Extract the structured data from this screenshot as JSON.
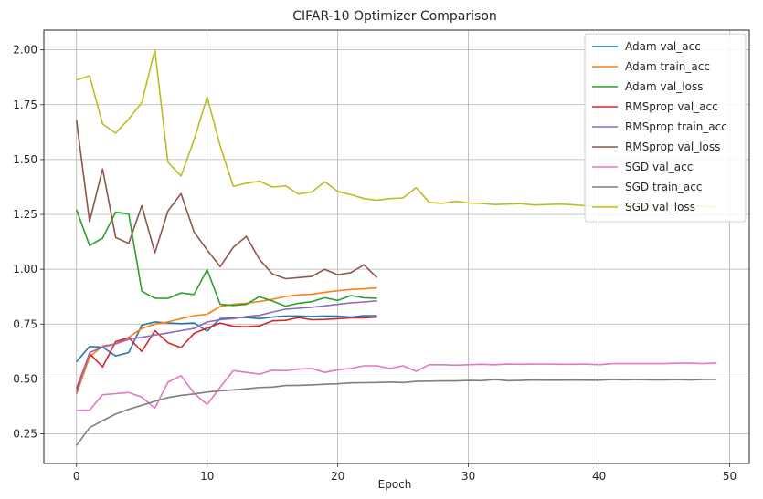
{
  "chart_data": {
    "type": "line",
    "title": "CIFAR-10 Optimizer Comparison",
    "xlabel": "Epoch",
    "ylabel": "",
    "xlim": [
      -2.5,
      51.5
    ],
    "ylim": [
      0.115,
      2.09
    ],
    "xticks": [
      0,
      10,
      20,
      30,
      40,
      50
    ],
    "yticks": [
      0.25,
      0.5,
      0.75,
      1.0,
      1.25,
      1.5,
      1.75,
      2.0
    ],
    "grid": true,
    "legend_position": "top-right",
    "series": [
      {
        "name": "Adam val_acc",
        "color": "#1f77b4",
        "values": [
          0.578,
          0.648,
          0.645,
          0.605,
          0.62,
          0.745,
          0.76,
          0.755,
          0.752,
          0.755,
          0.718,
          0.775,
          0.778,
          0.78,
          0.775,
          0.782,
          0.787,
          0.787,
          0.785,
          0.787,
          0.786,
          0.782,
          0.788,
          0.788
        ]
      },
      {
        "name": "Adam train_acc",
        "color": "#ff7f0e",
        "values": [
          0.43,
          0.6,
          0.65,
          0.66,
          0.69,
          0.73,
          0.75,
          0.76,
          0.775,
          0.788,
          0.795,
          0.83,
          0.84,
          0.845,
          0.853,
          0.863,
          0.876,
          0.883,
          0.886,
          0.895,
          0.902,
          0.908,
          0.911,
          0.915
        ]
      },
      {
        "name": "Adam val_loss",
        "color": "#2ca02c",
        "values": [
          1.272,
          1.108,
          1.142,
          1.26,
          1.253,
          0.9,
          0.868,
          0.867,
          0.892,
          0.885,
          0.998,
          0.84,
          0.835,
          0.84,
          0.875,
          0.855,
          0.832,
          0.845,
          0.852,
          0.87,
          0.858,
          0.88,
          0.87,
          0.868
        ]
      },
      {
        "name": "RMSprop val_acc",
        "color": "#d62728",
        "values": [
          0.455,
          0.615,
          0.555,
          0.67,
          0.688,
          0.625,
          0.72,
          0.665,
          0.643,
          0.708,
          0.732,
          0.755,
          0.74,
          0.738,
          0.742,
          0.765,
          0.767,
          0.78,
          0.77,
          0.771,
          0.775,
          0.778,
          0.778,
          0.782
        ]
      },
      {
        "name": "RMSprop train_acc",
        "color": "#9467bd",
        "values": [
          0.44,
          0.62,
          0.645,
          0.66,
          0.68,
          0.69,
          0.7,
          0.71,
          0.72,
          0.73,
          0.76,
          0.77,
          0.775,
          0.785,
          0.79,
          0.805,
          0.818,
          0.822,
          0.827,
          0.833,
          0.84,
          0.847,
          0.851,
          0.856
        ]
      },
      {
        "name": "RMSprop val_loss",
        "color": "#8c564b",
        "values": [
          1.68,
          1.217,
          1.457,
          1.145,
          1.118,
          1.29,
          1.075,
          1.265,
          1.345,
          1.17,
          1.088,
          1.012,
          1.1,
          1.15,
          1.045,
          0.978,
          0.957,
          0.962,
          0.967,
          1.0,
          0.975,
          0.985,
          1.02,
          0.962
        ]
      },
      {
        "name": "SGD val_acc",
        "color": "#e377c2",
        "values": [
          0.357,
          0.358,
          0.428,
          0.433,
          0.438,
          0.417,
          0.367,
          0.485,
          0.515,
          0.435,
          0.383,
          0.462,
          0.538,
          0.53,
          0.522,
          0.54,
          0.538,
          0.545,
          0.548,
          0.53,
          0.542,
          0.548,
          0.56,
          0.56,
          0.548,
          0.56,
          0.535,
          0.565,
          0.565,
          0.563,
          0.565,
          0.567,
          0.565,
          0.568,
          0.567,
          0.568,
          0.568,
          0.567,
          0.567,
          0.568,
          0.565,
          0.57,
          0.57,
          0.57,
          0.57,
          0.57,
          0.572,
          0.572,
          0.57,
          0.573
        ]
      },
      {
        "name": "SGD train_acc",
        "color": "#7f7f7f",
        "values": [
          0.197,
          0.278,
          0.31,
          0.34,
          0.362,
          0.38,
          0.398,
          0.415,
          0.425,
          0.432,
          0.44,
          0.446,
          0.45,
          0.455,
          0.461,
          0.463,
          0.47,
          0.471,
          0.473,
          0.476,
          0.478,
          0.482,
          0.483,
          0.484,
          0.486,
          0.484,
          0.489,
          0.49,
          0.491,
          0.491,
          0.493,
          0.492,
          0.497,
          0.492,
          0.493,
          0.495,
          0.494,
          0.494,
          0.495,
          0.494,
          0.494,
          0.497,
          0.496,
          0.497,
          0.496,
          0.496,
          0.497,
          0.495,
          0.498,
          0.498
        ]
      },
      {
        "name": "SGD val_loss",
        "color": "#bcbd22",
        "values": [
          1.862,
          1.882,
          1.662,
          1.62,
          1.685,
          1.76,
          2.0,
          1.488,
          1.425,
          1.59,
          1.785,
          1.562,
          1.378,
          1.392,
          1.402,
          1.375,
          1.38,
          1.343,
          1.352,
          1.398,
          1.355,
          1.34,
          1.322,
          1.315,
          1.322,
          1.325,
          1.372,
          1.305,
          1.3,
          1.31,
          1.302,
          1.3,
          1.295,
          1.297,
          1.299,
          1.293,
          1.295,
          1.297,
          1.294,
          1.289,
          1.29,
          1.29,
          1.292,
          1.288,
          1.29,
          1.289,
          1.289,
          1.287,
          1.288,
          1.283
        ]
      }
    ]
  }
}
